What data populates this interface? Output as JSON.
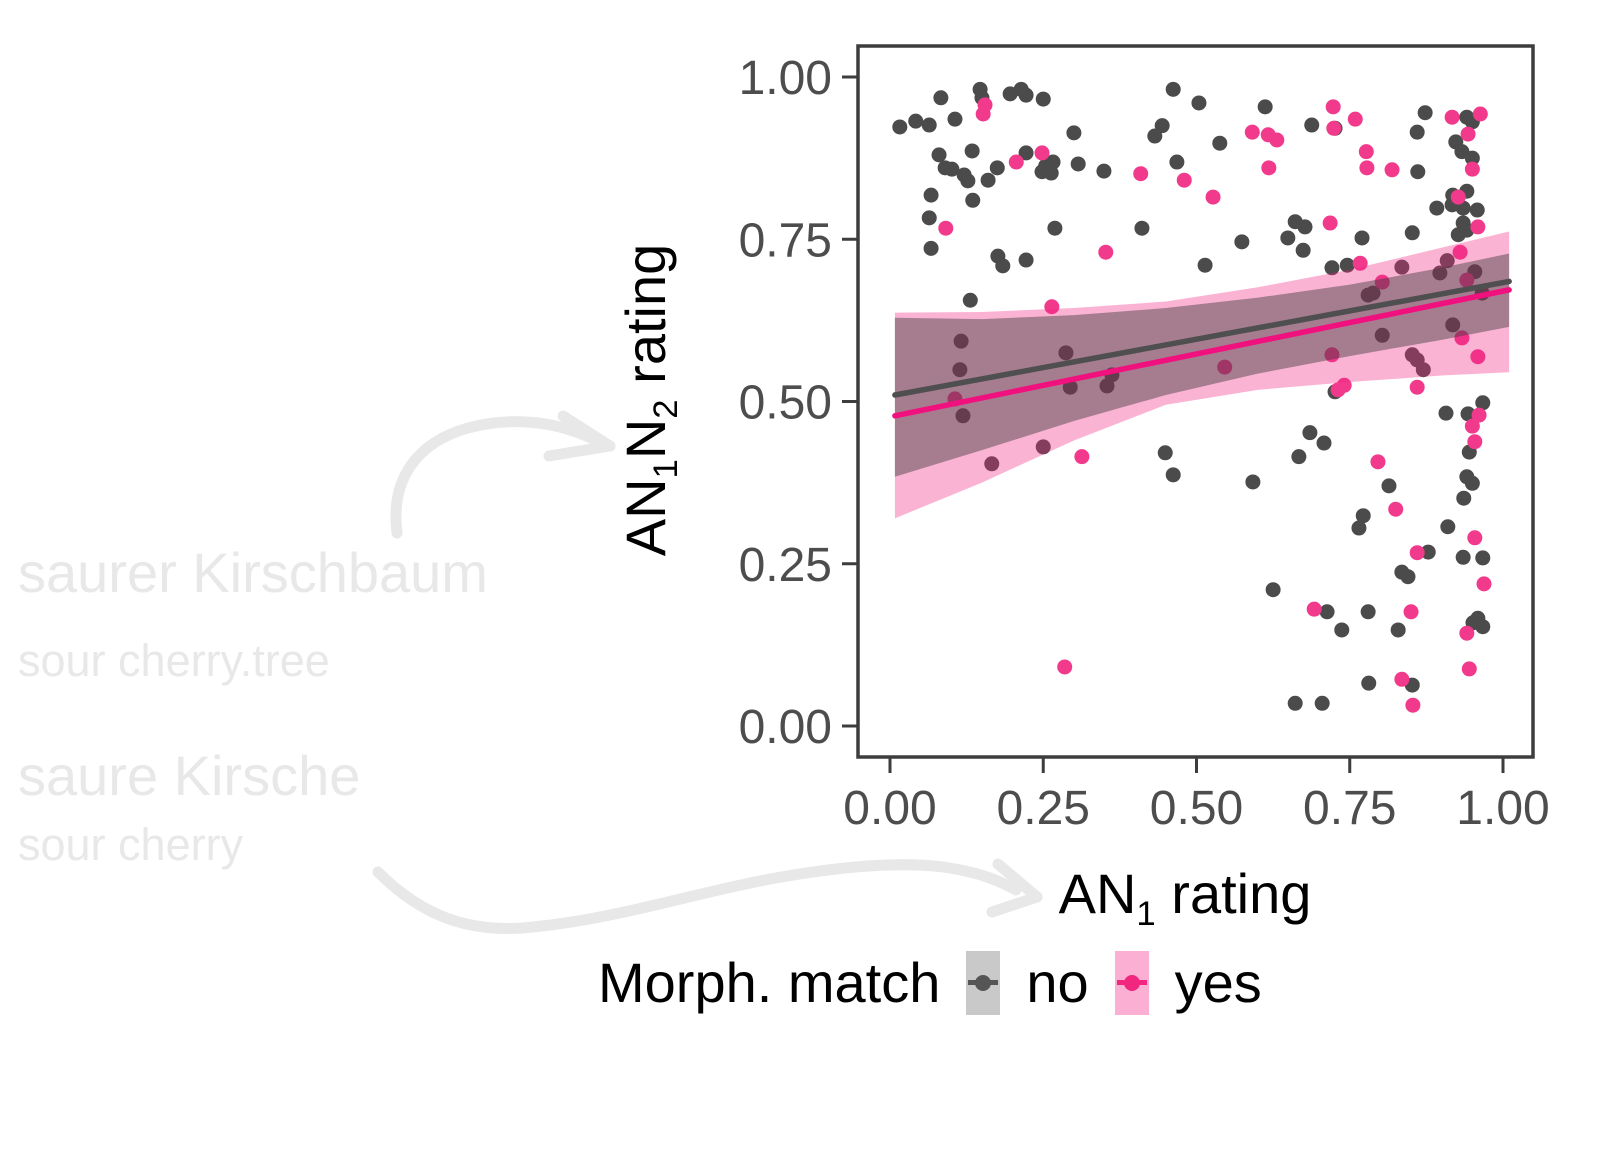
{
  "watermark": {
    "color": "#E8E8E8",
    "line1": "saurer Kirschbaum",
    "line2": "sour cherry.tree",
    "line3": "saure Kirsche",
    "line4": "sour cherry"
  },
  "legend": {
    "title": "Morph. match",
    "items": [
      {
        "label": "no",
        "swatch_color": "#C9C9C9",
        "marker_color": "#555555"
      },
      {
        "label": "yes",
        "swatch_color": "#FBAFD3",
        "marker_color": "#F0267F"
      }
    ]
  },
  "chart_data": {
    "type": "scatter",
    "xlabel_parts": [
      {
        "t": "AN"
      },
      {
        "t": "1",
        "sub": true
      },
      {
        "t": " rating"
      }
    ],
    "ylabel_parts": [
      {
        "t": "AN"
      },
      {
        "t": "1",
        "sub": true
      },
      {
        "t": "N"
      },
      {
        "t": "2",
        "sub": true
      },
      {
        "t": " rating"
      }
    ],
    "xlim": [
      0,
      1
    ],
    "ylim": [
      0,
      1
    ],
    "grid": false,
    "legend_position": "bottom",
    "x_ticks": [
      {
        "v": 0.0,
        "label": "0.00"
      },
      {
        "v": 0.25,
        "label": "0.25"
      },
      {
        "v": 0.5,
        "label": "0.50"
      },
      {
        "v": 0.75,
        "label": "0.75"
      },
      {
        "v": 1.0,
        "label": "1.00"
      }
    ],
    "y_ticks": [
      {
        "v": 0.0,
        "label": "0.00"
      },
      {
        "v": 0.25,
        "label": "0.25"
      },
      {
        "v": 0.5,
        "label": "0.50"
      },
      {
        "v": 0.75,
        "label": "0.75"
      },
      {
        "v": 1.0,
        "label": "1.00"
      }
    ],
    "tick_label_color": "#4D4D4D",
    "frame_color": "#3D3D3D",
    "series": [
      {
        "name": "no",
        "point_color": "#4B4B4B",
        "points": [
          [
            0.083,
            0.968
          ],
          [
            0.016,
            0.923
          ],
          [
            0.042,
            0.932
          ],
          [
            0.064,
            0.926
          ],
          [
            0.106,
            0.935
          ],
          [
            0.147,
            0.981
          ],
          [
            0.15,
            0.968
          ],
          [
            0.196,
            0.974
          ],
          [
            0.214,
            0.981
          ],
          [
            0.222,
            0.972
          ],
          [
            0.25,
            0.966
          ],
          [
            0.3,
            0.914
          ],
          [
            0.432,
            0.909
          ],
          [
            0.444,
            0.925
          ],
          [
            0.08,
            0.88
          ],
          [
            0.09,
            0.86
          ],
          [
            0.101,
            0.858
          ],
          [
            0.121,
            0.849
          ],
          [
            0.127,
            0.84
          ],
          [
            0.134,
            0.886
          ],
          [
            0.16,
            0.841
          ],
          [
            0.175,
            0.86
          ],
          [
            0.222,
            0.883
          ],
          [
            0.248,
            0.854
          ],
          [
            0.254,
            0.863
          ],
          [
            0.266,
            0.869
          ],
          [
            0.263,
            0.852
          ],
          [
            0.307,
            0.866
          ],
          [
            0.349,
            0.855
          ],
          [
            0.067,
            0.818
          ],
          [
            0.064,
            0.783
          ],
          [
            0.135,
            0.81
          ],
          [
            0.067,
            0.736
          ],
          [
            0.411,
            0.767
          ],
          [
            0.269,
            0.767
          ],
          [
            0.176,
            0.724
          ],
          [
            0.184,
            0.709
          ],
          [
            0.222,
            0.718
          ],
          [
            0.131,
            0.656
          ],
          [
            0.116,
            0.593
          ],
          [
            0.114,
            0.549
          ],
          [
            0.287,
            0.575
          ],
          [
            0.294,
            0.522
          ],
          [
            0.362,
            0.541
          ],
          [
            0.354,
            0.524
          ],
          [
            0.462,
            0.981
          ],
          [
            0.504,
            0.96
          ],
          [
            0.612,
            0.954
          ],
          [
            0.688,
            0.926
          ],
          [
            0.726,
            0.921
          ],
          [
            0.538,
            0.898
          ],
          [
            0.468,
            0.869
          ],
          [
            0.873,
            0.945
          ],
          [
            0.86,
            0.915
          ],
          [
            0.923,
            0.9
          ],
          [
            0.933,
            0.885
          ],
          [
            0.95,
            0.875
          ],
          [
            0.941,
            0.938
          ],
          [
            0.95,
            0.931
          ],
          [
            0.861,
            0.854
          ],
          [
            0.892,
            0.798
          ],
          [
            0.918,
            0.818
          ],
          [
            0.941,
            0.824
          ],
          [
            0.958,
            0.795
          ],
          [
            0.661,
            0.777
          ],
          [
            0.677,
            0.769
          ],
          [
            0.674,
            0.733
          ],
          [
            0.649,
            0.752
          ],
          [
            0.574,
            0.746
          ],
          [
            0.514,
            0.71
          ],
          [
            0.721,
            0.706
          ],
          [
            0.746,
            0.71
          ],
          [
            0.77,
            0.752
          ],
          [
            0.852,
            0.76
          ],
          [
            0.835,
            0.707
          ],
          [
            0.917,
            0.803
          ],
          [
            0.935,
            0.798
          ],
          [
            0.927,
            0.757
          ],
          [
            0.941,
            0.764
          ],
          [
            0.935,
            0.775
          ],
          [
            0.897,
            0.698
          ],
          [
            0.909,
            0.717
          ],
          [
            0.78,
            0.664
          ],
          [
            0.788,
            0.667
          ],
          [
            0.803,
            0.602
          ],
          [
            0.852,
            0.572
          ],
          [
            0.86,
            0.564
          ],
          [
            0.87,
            0.549
          ],
          [
            0.726,
            0.515
          ],
          [
            0.918,
            0.618
          ],
          [
            0.966,
            0.667
          ],
          [
            0.954,
            0.7
          ],
          [
            0.119,
            0.478
          ],
          [
            0.166,
            0.404
          ],
          [
            0.25,
            0.43
          ],
          [
            0.449,
            0.421
          ],
          [
            0.462,
            0.387
          ],
          [
            0.592,
            0.376
          ],
          [
            0.685,
            0.452
          ],
          [
            0.708,
            0.436
          ],
          [
            0.667,
            0.415
          ],
          [
            0.814,
            0.37
          ],
          [
            0.772,
            0.324
          ],
          [
            0.765,
            0.305
          ],
          [
            0.91,
            0.307
          ],
          [
            0.907,
            0.482
          ],
          [
            0.943,
            0.481
          ],
          [
            0.967,
            0.498
          ],
          [
            0.945,
            0.422
          ],
          [
            0.941,
            0.384
          ],
          [
            0.95,
            0.374
          ],
          [
            0.936,
            0.351
          ],
          [
            0.935,
            0.26
          ],
          [
            0.967,
            0.259
          ],
          [
            0.878,
            0.268
          ],
          [
            0.835,
            0.237
          ],
          [
            0.845,
            0.23
          ],
          [
            0.959,
            0.166
          ],
          [
            0.967,
            0.153
          ],
          [
            0.951,
            0.159
          ],
          [
            0.829,
            0.148
          ],
          [
            0.737,
            0.148
          ],
          [
            0.78,
            0.176
          ],
          [
            0.781,
            0.066
          ],
          [
            0.852,
            0.063
          ],
          [
            0.661,
            0.035
          ],
          [
            0.705,
            0.035
          ],
          [
            0.625,
            0.21
          ],
          [
            0.713,
            0.176
          ]
        ]
      },
      {
        "name": "yes",
        "point_color": "#F23A8C",
        "points": [
          [
            0.155,
            0.957
          ],
          [
            0.152,
            0.943
          ],
          [
            0.206,
            0.869
          ],
          [
            0.248,
            0.883
          ],
          [
            0.409,
            0.851
          ],
          [
            0.091,
            0.767
          ],
          [
            0.352,
            0.73
          ],
          [
            0.264,
            0.646
          ],
          [
            0.106,
            0.504
          ],
          [
            0.723,
            0.954
          ],
          [
            0.759,
            0.935
          ],
          [
            0.591,
            0.915
          ],
          [
            0.617,
            0.911
          ],
          [
            0.631,
            0.903
          ],
          [
            0.724,
            0.921
          ],
          [
            0.777,
            0.885
          ],
          [
            0.778,
            0.86
          ],
          [
            0.819,
            0.857
          ],
          [
            0.618,
            0.86
          ],
          [
            0.48,
            0.841
          ],
          [
            0.527,
            0.815
          ],
          [
            0.718,
            0.775
          ],
          [
            0.767,
            0.713
          ],
          [
            0.917,
            0.938
          ],
          [
            0.943,
            0.912
          ],
          [
            0.963,
            0.943
          ],
          [
            0.95,
            0.858
          ],
          [
            0.927,
            0.815
          ],
          [
            0.959,
            0.769
          ],
          [
            0.93,
            0.73
          ],
          [
            0.803,
            0.684
          ],
          [
            0.941,
            0.687
          ],
          [
            0.721,
            0.572
          ],
          [
            0.741,
            0.525
          ],
          [
            0.731,
            0.518
          ],
          [
            0.86,
            0.522
          ],
          [
            0.959,
            0.569
          ],
          [
            0.933,
            0.598
          ],
          [
            0.546,
            0.553
          ],
          [
            0.313,
            0.415
          ],
          [
            0.285,
            0.091
          ],
          [
            0.796,
            0.407
          ],
          [
            0.825,
            0.334
          ],
          [
            0.86,
            0.267
          ],
          [
            0.954,
            0.29
          ],
          [
            0.969,
            0.219
          ],
          [
            0.692,
            0.18
          ],
          [
            0.85,
            0.176
          ],
          [
            0.941,
            0.143
          ],
          [
            0.945,
            0.088
          ],
          [
            0.835,
            0.072
          ],
          [
            0.853,
            0.032
          ],
          [
            0.961,
            0.479
          ],
          [
            0.95,
            0.462
          ],
          [
            0.954,
            0.438
          ]
        ]
      }
    ],
    "fits": [
      {
        "name": "no",
        "line_color": "#4F4F4F",
        "ribbon_fill": "rgba(60,60,60,0.45)",
        "line": {
          "x": [
            0.008,
            1.01
          ],
          "y": [
            0.51,
            0.685
          ]
        },
        "ribbon_x": [
          0.008,
          0.15,
          0.3,
          0.45,
          0.6,
          0.75,
          0.9,
          1.01
        ],
        "ribbon_upper": [
          0.629,
          0.627,
          0.633,
          0.644,
          0.66,
          0.68,
          0.706,
          0.728
        ],
        "ribbon_lower": [
          0.384,
          0.425,
          0.47,
          0.51,
          0.543,
          0.57,
          0.595,
          0.615
        ]
      },
      {
        "name": "yes",
        "line_color": "#F0117E",
        "ribbon_fill": "rgba(243,37,133,0.35)",
        "line": {
          "x": [
            0.008,
            1.01
          ],
          "y": [
            0.478,
            0.672
          ]
        },
        "ribbon_x": [
          0.008,
          0.15,
          0.3,
          0.45,
          0.6,
          0.75,
          0.9,
          1.01
        ],
        "ribbon_upper": [
          0.637,
          0.638,
          0.644,
          0.654,
          0.676,
          0.703,
          0.737,
          0.762
        ],
        "ribbon_lower": [
          0.32,
          0.375,
          0.44,
          0.495,
          0.518,
          0.53,
          0.54,
          0.545
        ]
      }
    ]
  },
  "annotations": {
    "arrow_color": "#E8E8E8"
  }
}
